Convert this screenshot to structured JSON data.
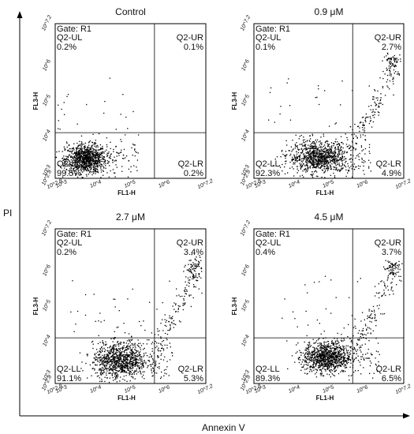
{
  "axis_labels": {
    "y": "PI",
    "x": "Annexin V"
  },
  "chart_data": {
    "type": "scatter",
    "plot_kind": "flow cytometry quadrant dot plot",
    "axis_range": [
      2.8,
      7.2
    ],
    "tick_values": [
      2.8,
      3,
      4,
      5,
      6,
      7.2
    ],
    "tick_labels": [
      "10^2.8",
      "10^3",
      "10^4",
      "10^5",
      "10^6",
      "10^7.2"
    ],
    "gate_x": 5.7,
    "gate_y": 4.1,
    "xlabel": "FL1-H",
    "ylabel": "FL3-H",
    "point_color": "#000000",
    "panels": [
      {
        "title": "Control",
        "gate": "Gate: R1",
        "quadrants": {
          "UL": "Q2-UL",
          "UR": "Q2-UR",
          "LL": "Q2-LL",
          "LR": "Q2-LR"
        },
        "percentages": {
          "UL": "0.2%",
          "UR": "0.1%",
          "LL": "99.5%",
          "LR": "0.2%"
        },
        "cluster": {
          "x": 3.7,
          "y": 3.35,
          "sx": 0.3,
          "sy": 0.2
        }
      },
      {
        "title": "0.9 μM",
        "gate": "Gate: R1",
        "quadrants": {
          "UL": "Q2-UL",
          "UR": "Q2-UR",
          "LL": "Q2-LL",
          "LR": "Q2-LR"
        },
        "percentages": {
          "UL": "0.1%",
          "UR": "2.7%",
          "LL": "92.3%",
          "LR": "4.9%"
        },
        "cluster": {
          "x": 4.7,
          "y": 3.4,
          "sx": 0.45,
          "sy": 0.22
        }
      },
      {
        "title": "2.7 μM",
        "gate": "Gate: R1",
        "quadrants": {
          "UL": "Q2-UL",
          "UR": "Q2-UR",
          "LL": "Q2-LL",
          "LR": "Q2-LR"
        },
        "percentages": {
          "UL": "0.2%",
          "UR": "3.4%",
          "LL": "91.1%",
          "LR": "5.3%"
        },
        "cluster": {
          "x": 4.7,
          "y": 3.45,
          "sx": 0.4,
          "sy": 0.25
        }
      },
      {
        "title": "4.5 μM",
        "gate": "Gate: R1",
        "quadrants": {
          "UL": "Q2-UL",
          "UR": "Q2-UR",
          "LL": "Q2-LL",
          "LR": "Q2-LR"
        },
        "percentages": {
          "UL": "0.4%",
          "UR": "3.7%",
          "LL": "89.3%",
          "LR": "6.5%"
        },
        "cluster": {
          "x": 4.95,
          "y": 3.55,
          "sx": 0.35,
          "sy": 0.22
        }
      }
    ]
  }
}
